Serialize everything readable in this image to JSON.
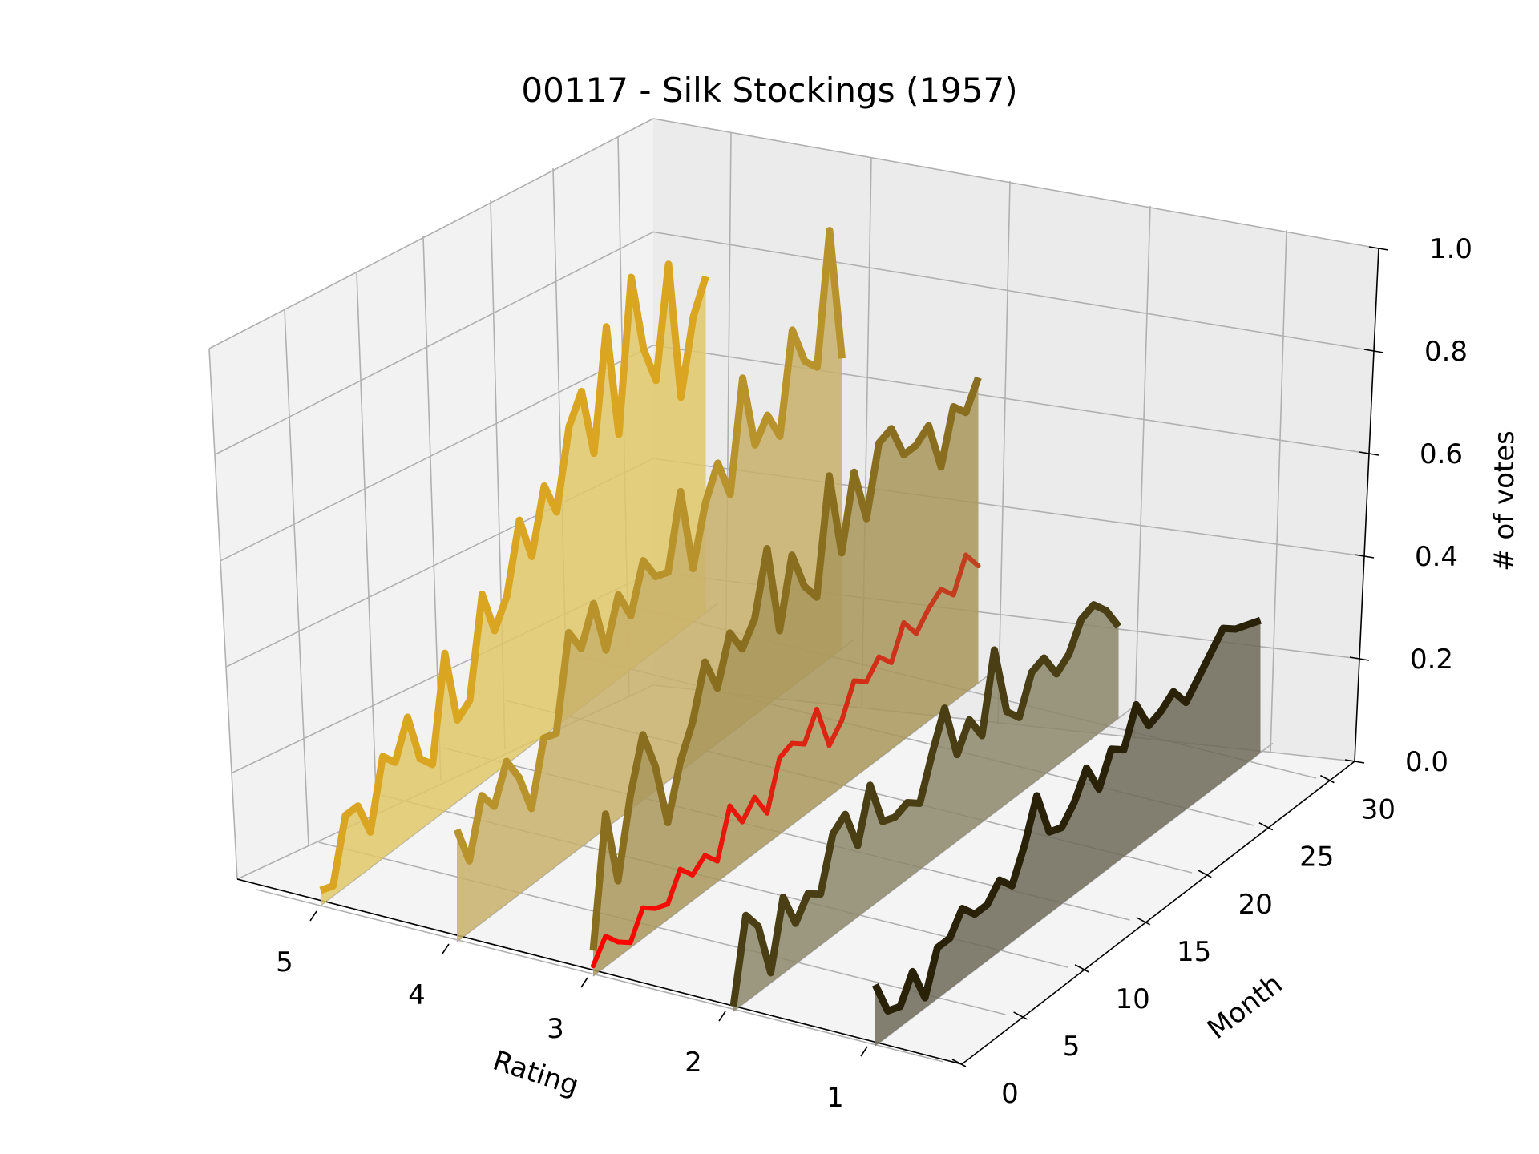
{
  "chart_data": {
    "type": "line",
    "title": "00117 - Silk Stockings (1957)",
    "xlabel": "Rating",
    "ylabel": "Month",
    "zlabel": "# of votes",
    "x_ticks": [
      "5",
      "4",
      "3",
      "2",
      "1"
    ],
    "y_ticks": [
      "0",
      "5",
      "10",
      "15",
      "20",
      "25",
      "30"
    ],
    "z_ticks": [
      "0.0",
      "0.2",
      "0.4",
      "0.6",
      "0.8",
      "1.0"
    ],
    "zlim": [
      0,
      1
    ],
    "ylim": [
      0,
      32
    ],
    "grid": true,
    "series": [
      {
        "rating": 5,
        "color": "#DAA520",
        "fill": "#E0C86A",
        "months": [
          0,
          1,
          2,
          3,
          4,
          5,
          6,
          7,
          8,
          9,
          10,
          11,
          12,
          13,
          14,
          15,
          16,
          17,
          18,
          19,
          20,
          21,
          22,
          23,
          24,
          25,
          26,
          27,
          28,
          29,
          30,
          31
        ],
        "values": [
          0.03,
          0.02,
          0.14,
          0.14,
          0.07,
          0.2,
          0.17,
          0.24,
          0.14,
          0.11,
          0.31,
          0.16,
          0.18,
          0.37,
          0.28,
          0.33,
          0.46,
          0.37,
          0.49,
          0.42,
          0.57,
          0.62,
          0.48,
          0.71,
          0.48,
          0.77,
          0.61,
          0.53,
          0.74,
          0.46,
          0.6,
          0.66
        ]
      },
      {
        "rating": 4,
        "color": "#B8922A",
        "fill": "#C8B06A",
        "months": [
          0,
          1,
          2,
          3,
          4,
          5,
          6,
          7,
          8,
          9,
          10,
          11,
          12,
          13,
          14,
          15,
          16,
          17,
          18,
          19,
          20,
          21,
          22,
          23,
          24,
          25,
          26,
          27,
          28,
          29,
          30,
          31
        ],
        "values": [
          0.22,
          0.14,
          0.25,
          0.21,
          0.28,
          0.23,
          0.15,
          0.27,
          0.26,
          0.44,
          0.39,
          0.46,
          0.35,
          0.44,
          0.38,
          0.47,
          0.42,
          0.41,
          0.55,
          0.38,
          0.49,
          0.55,
          0.47,
          0.68,
          0.53,
          0.57,
          0.51,
          0.7,
          0.62,
          0.59,
          0.84,
          0.57
        ]
      },
      {
        "rating": 3,
        "color": "#8A6E20",
        "fill": "#A8965A",
        "months": [
          0,
          1,
          2,
          3,
          4,
          5,
          6,
          7,
          8,
          9,
          10,
          11,
          12,
          13,
          14,
          15,
          16,
          17,
          18,
          19,
          20,
          21,
          22,
          23,
          24,
          25,
          26,
          27,
          28,
          29,
          30,
          31
        ],
        "values": [
          0.05,
          0.3,
          0.15,
          0.3,
          0.4,
          0.32,
          0.19,
          0.29,
          0.35,
          0.45,
          0.38,
          0.47,
          0.42,
          0.46,
          0.58,
          0.4,
          0.53,
          0.45,
          0.41,
          0.63,
          0.46,
          0.6,
          0.49,
          0.62,
          0.63,
          0.56,
          0.56,
          0.58,
          0.48,
          0.58,
          0.55,
          0.6
        ]
      },
      {
        "rating": 3,
        "color": "#FF0000",
        "color_end": "#C04020",
        "fill": null,
        "months": [
          0,
          1,
          2,
          3,
          4,
          5,
          6,
          7,
          8,
          9,
          10,
          11,
          12,
          13,
          14,
          15,
          16,
          17,
          18,
          19,
          20,
          21,
          22,
          23,
          24,
          25,
          26,
          27,
          28,
          29,
          30,
          31
        ],
        "values": [
          0.02,
          0.06,
          0.03,
          0.01,
          0.06,
          0.04,
          0.03,
          0.08,
          0.05,
          0.07,
          0.04,
          0.13,
          0.08,
          0.11,
          0.06,
          0.15,
          0.16,
          0.14,
          0.19,
          0.1,
          0.13,
          0.19,
          0.17,
          0.2,
          0.17,
          0.23,
          0.19,
          0.22,
          0.24,
          0.21,
          0.27,
          0.23
        ]
      },
      {
        "rating": 2,
        "color": "#4A3E14",
        "fill": "#8C866A",
        "months": [
          0,
          1,
          2,
          3,
          4,
          5,
          6,
          7,
          8,
          9,
          10,
          11,
          12,
          13,
          14,
          15,
          16,
          17,
          18,
          19,
          20,
          21,
          22,
          23,
          24,
          25,
          26,
          27,
          28,
          29,
          30,
          31
        ],
        "values": [
          0.01,
          0.17,
          0.13,
          0.02,
          0.15,
          0.08,
          0.12,
          0.1,
          0.2,
          0.22,
          0.14,
          0.24,
          0.15,
          0.14,
          0.15,
          0.13,
          0.21,
          0.28,
          0.17,
          0.22,
          0.17,
          0.32,
          0.18,
          0.15,
          0.22,
          0.23,
          0.18,
          0.2,
          0.25,
          0.26,
          0.23,
          0.18
        ]
      },
      {
        "rating": 1,
        "color": "#2A2208",
        "fill": "#6E6A58",
        "months": [
          0,
          1,
          2,
          3,
          4,
          5,
          6,
          7,
          8,
          9,
          10,
          11,
          12,
          13,
          14,
          15,
          16,
          17,
          18,
          19,
          20,
          21,
          22,
          23,
          24,
          25,
          26,
          27,
          28,
          29,
          30,
          31
        ],
        "values": [
          0.12,
          0.05,
          0.04,
          0.09,
          0.02,
          0.1,
          0.1,
          0.14,
          0.11,
          0.11,
          0.14,
          0.11,
          0.17,
          0.25,
          0.16,
          0.15,
          0.18,
          0.23,
          0.17,
          0.23,
          0.21,
          0.28,
          0.22,
          0.23,
          0.25,
          0.21,
          0.24,
          0.27,
          0.3,
          0.28,
          0.27,
          0.26
        ]
      }
    ]
  }
}
